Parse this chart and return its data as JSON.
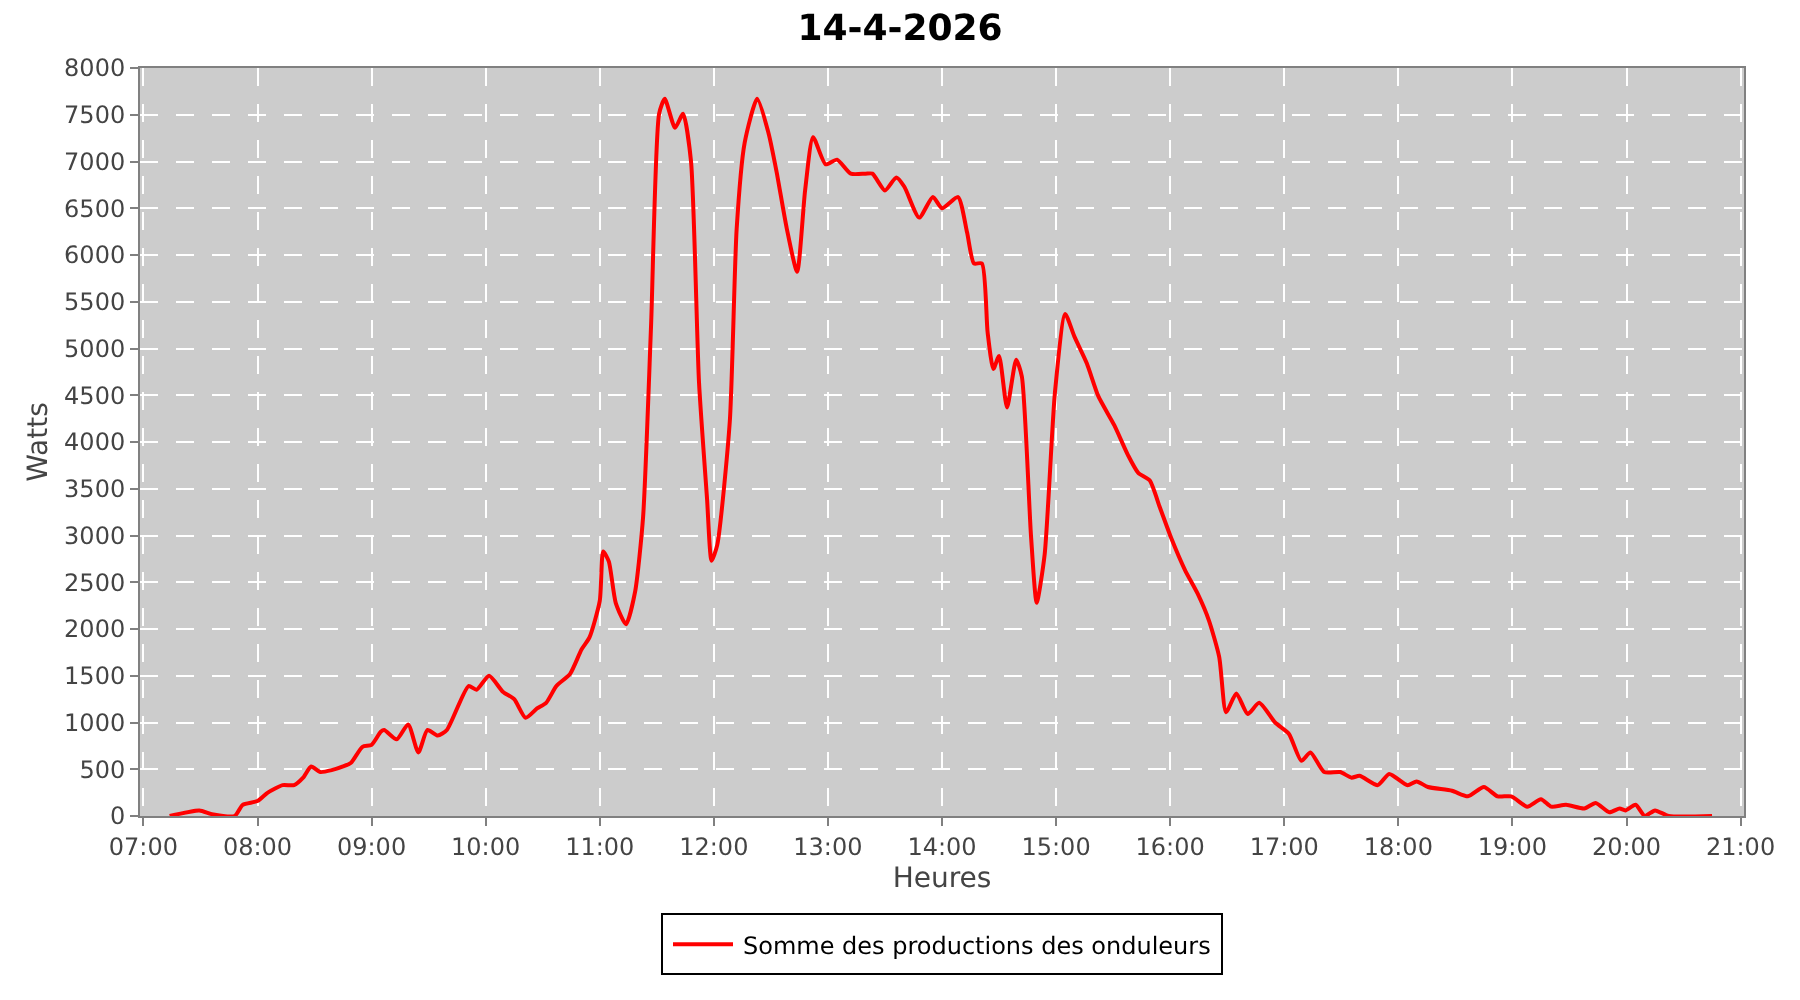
{
  "chart_data": {
    "type": "line",
    "title": "14-4-2026",
    "xlabel": "Heures",
    "ylabel": "Watts",
    "xlim": [
      6.97,
      21.03
    ],
    "xticks": [
      {
        "value": 7,
        "label": "07:00"
      },
      {
        "value": 8,
        "label": "08:00"
      },
      {
        "value": 9,
        "label": "09:00"
      },
      {
        "value": 10,
        "label": "10:00"
      },
      {
        "value": 11,
        "label": "11:00"
      },
      {
        "value": 12,
        "label": "12:00"
      },
      {
        "value": 13,
        "label": "13:00"
      },
      {
        "value": 14,
        "label": "14:00"
      },
      {
        "value": 15,
        "label": "15:00"
      },
      {
        "value": 16,
        "label": "16:00"
      },
      {
        "value": 17,
        "label": "17:00"
      },
      {
        "value": 18,
        "label": "18:00"
      },
      {
        "value": 19,
        "label": "19:00"
      },
      {
        "value": 20,
        "label": "20:00"
      },
      {
        "value": 21,
        "label": "21:00"
      }
    ],
    "ylim": [
      0,
      8000
    ],
    "yticks": [
      0,
      500,
      1000,
      1500,
      2000,
      2500,
      3000,
      3500,
      4000,
      4500,
      5000,
      5500,
      6000,
      6500,
      7000,
      7500,
      8000
    ],
    "grid": true,
    "legend": "bottom",
    "marker": "none",
    "line_style": "solid",
    "x": [
      7.23,
      7.49,
      7.6,
      7.8,
      7.87,
      8.0,
      8.09,
      8.22,
      8.32,
      8.4,
      8.47,
      8.55,
      8.65,
      8.75,
      8.82,
      8.92,
      9.0,
      9.08,
      9.11,
      9.22,
      9.32,
      9.41,
      9.49,
      9.58,
      9.66,
      9.85,
      9.92,
      10.03,
      10.15,
      10.25,
      10.35,
      10.45,
      10.53,
      10.62,
      10.74,
      10.84,
      10.91,
      11.0,
      11.03,
      11.08,
      11.14,
      11.23,
      11.31,
      11.38,
      11.45,
      11.52,
      11.57,
      11.66,
      11.73,
      11.8,
      11.87,
      11.94,
      11.98,
      12.03,
      12.14,
      12.2,
      12.27,
      12.38,
      12.48,
      12.55,
      12.64,
      12.73,
      12.8,
      12.87,
      12.98,
      13.08,
      13.2,
      13.33,
      13.39,
      13.5,
      13.6,
      13.67,
      13.8,
      13.92,
      14.0,
      14.14,
      14.22,
      14.28,
      14.35,
      14.4,
      14.45,
      14.5,
      14.57,
      14.65,
      14.7,
      14.78,
      14.83,
      14.9,
      14.99,
      15.08,
      15.16,
      15.27,
      15.37,
      15.51,
      15.63,
      15.72,
      15.82,
      15.91,
      16.01,
      16.13,
      16.24,
      16.34,
      16.43,
      16.49,
      16.58,
      16.68,
      16.78,
      16.92,
      17.04,
      17.15,
      17.23,
      17.35,
      17.49,
      17.59,
      17.66,
      17.82,
      17.92,
      18.08,
      18.16,
      18.26,
      18.47,
      18.61,
      18.75,
      18.87,
      18.99,
      19.13,
      19.25,
      19.34,
      19.47,
      19.63,
      19.73,
      19.85,
      19.94,
      19.99,
      20.08,
      20.16,
      20.25,
      20.37,
      20.75
    ],
    "series": [
      {
        "name": "Somme des productions des onduleurs",
        "color": "#ff0000",
        "values": [
          0,
          60,
          20,
          0,
          120,
          160,
          250,
          330,
          330,
          410,
          530,
          470,
          490,
          530,
          570,
          740,
          760,
          900,
          920,
          820,
          980,
          680,
          920,
          860,
          920,
          1390,
          1350,
          1500,
          1330,
          1250,
          1050,
          1150,
          1210,
          1390,
          1520,
          1780,
          1910,
          2300,
          2830,
          2720,
          2280,
          2050,
          2400,
          3200,
          5250,
          7510,
          7670,
          7360,
          7510,
          7000,
          4640,
          3400,
          2730,
          2900,
          4220,
          6280,
          7200,
          7670,
          7300,
          6890,
          6280,
          5820,
          6690,
          7260,
          6970,
          7020,
          6870,
          6870,
          6870,
          6690,
          6830,
          6730,
          6400,
          6620,
          6500,
          6620,
          6240,
          5910,
          5910,
          5170,
          4780,
          4920,
          4370,
          4880,
          4700,
          3000,
          2280,
          2800,
          4530,
          5370,
          5130,
          4840,
          4490,
          4180,
          3860,
          3670,
          3590,
          3300,
          2970,
          2630,
          2380,
          2090,
          1700,
          1110,
          1310,
          1090,
          1210,
          1000,
          880,
          590,
          680,
          470,
          470,
          410,
          430,
          330,
          450,
          330,
          370,
          310,
          270,
          210,
          310,
          210,
          210,
          100,
          180,
          100,
          120,
          80,
          140,
          40,
          80,
          60,
          120,
          0,
          60,
          0,
          0
        ]
      }
    ]
  }
}
